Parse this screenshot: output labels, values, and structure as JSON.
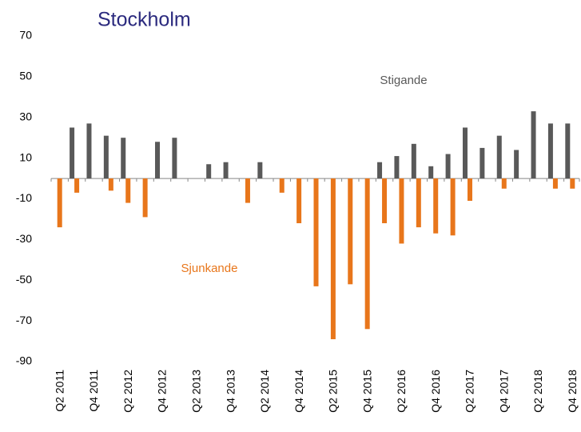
{
  "chart_data": {
    "type": "bar",
    "title": "Stockholm",
    "categories": [
      "Q2 2011",
      null,
      "Q4 2011",
      null,
      "Q2 2012",
      null,
      "Q4 2012",
      null,
      "Q2 2013",
      null,
      "Q4 2013",
      null,
      "Q2 2014",
      null,
      "Q4 2014",
      null,
      "Q2 2015",
      null,
      "Q4 2015",
      null,
      "Q2 2016",
      null,
      "Q4 2016",
      null,
      "Q2 2017",
      null,
      "Q4 2017",
      null,
      "Q2 2018",
      null,
      "Q4 2018"
    ],
    "series": [
      {
        "name": "Stigande",
        "color": "#595959",
        "values": [
          null,
          25,
          27,
          21,
          20,
          null,
          18,
          20,
          null,
          7,
          8,
          null,
          8,
          null,
          null,
          null,
          null,
          null,
          null,
          8,
          11,
          17,
          6,
          12,
          25,
          15,
          21,
          14,
          33,
          27,
          27
        ]
      },
      {
        "name": "Sjunkande",
        "color": "#e8761b",
        "values": [
          -24,
          -7,
          null,
          -6,
          -12,
          -19,
          null,
          null,
          null,
          null,
          null,
          -12,
          null,
          -7,
          -22,
          -53,
          -79,
          -52,
          -74,
          -22,
          -32,
          -24,
          -27,
          -28,
          -11,
          null,
          -5,
          null,
          null,
          -5,
          -5
        ]
      }
    ],
    "ylim": [
      -90,
      70
    ],
    "yticks": [
      70,
      50,
      30,
      10,
      -10,
      -30,
      -50,
      -70,
      -90
    ],
    "grid": false
  }
}
